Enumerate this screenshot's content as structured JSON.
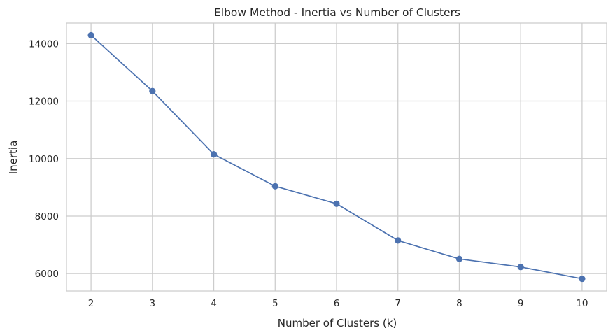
{
  "chart_data": {
    "type": "line",
    "title": "Elbow Method - Inertia vs Number of Clusters",
    "xlabel": "Number of Clusters (k)",
    "ylabel": "Inertia",
    "x": [
      2,
      3,
      4,
      5,
      6,
      7,
      8,
      9,
      10
    ],
    "series": [
      {
        "values": [
          14290,
          12350,
          10150,
          9040,
          8430,
          7150,
          6510,
          6230,
          5820
        ],
        "color": "#4c72b0",
        "marker": "circle"
      }
    ],
    "x_ticks": [
      2,
      3,
      4,
      5,
      6,
      7,
      8,
      9,
      10
    ],
    "y_ticks": [
      6000,
      8000,
      10000,
      12000,
      14000
    ],
    "xlim": [
      1.6,
      10.4
    ],
    "ylim": [
      5396,
      14714
    ],
    "grid": true
  }
}
